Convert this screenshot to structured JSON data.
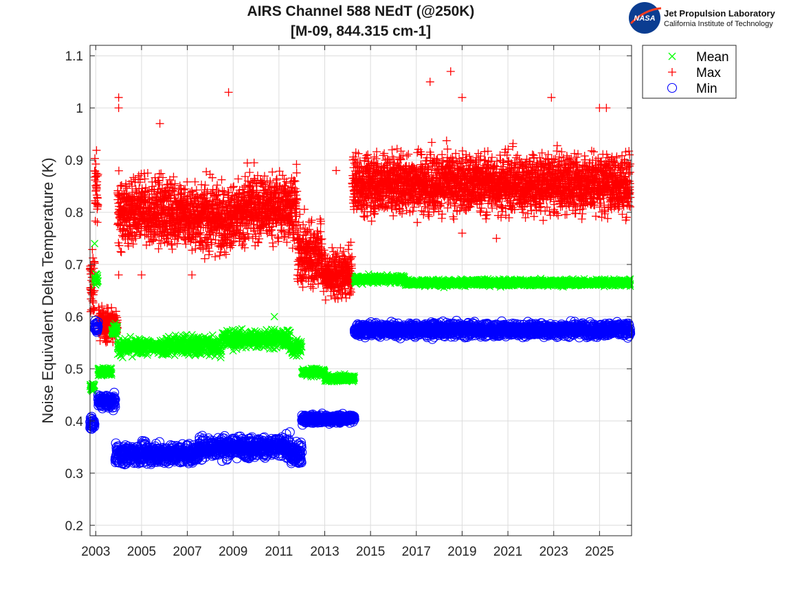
{
  "logo": {
    "agency": "NASA",
    "lab_title": "Jet Propulsion Laboratory",
    "lab_subtitle": "California Institute of Technology"
  },
  "chart_data": {
    "type": "scatter",
    "title": "AIRS Channel 588 NEdT (@250K)",
    "subtitle": "[M-09, 844.315 cm-1]",
    "xlabel": "",
    "ylabel": "Noise Equivalent Delta Temperature (K)",
    "xlim": [
      2002.75,
      2026.4
    ],
    "ylim": [
      0.18,
      1.12
    ],
    "xticks": [
      2003,
      2005,
      2007,
      2009,
      2011,
      2013,
      2015,
      2017,
      2019,
      2021,
      2023,
      2025
    ],
    "yticks": [
      0.2,
      0.3,
      0.4,
      0.5,
      0.6,
      0.7,
      0.8,
      0.9,
      1.0,
      1.1
    ],
    "ytick_labels": [
      "0.2",
      "0.3",
      "0.4",
      "0.5",
      "0.6",
      "0.7",
      "0.8",
      "0.9",
      "1",
      "1.1"
    ],
    "grid": true,
    "legend_position": "outside-top-right",
    "series": [
      {
        "name": "Mean",
        "marker": "x",
        "color": "#00ff00",
        "segments": [
          {
            "x_start": 2002.75,
            "x_end": 2002.95,
            "level": 0.465,
            "spread": 0.006
          },
          {
            "x_start": 2002.95,
            "x_end": 2003.1,
            "level": 0.67,
            "spread": 0.01
          },
          {
            "x_start": 2003.1,
            "x_end": 2003.7,
            "level": 0.495,
            "spread": 0.006
          },
          {
            "x_start": 2003.7,
            "x_end": 2003.95,
            "level": 0.575,
            "spread": 0.01
          },
          {
            "x_start": 2003.95,
            "x_end": 2006.0,
            "level": 0.542,
            "spread": 0.012
          },
          {
            "x_start": 2006.0,
            "x_end": 2008.5,
            "level": 0.545,
            "spread": 0.016
          },
          {
            "x_start": 2008.5,
            "x_end": 2011.5,
            "level": 0.557,
            "spread": 0.014
          },
          {
            "x_start": 2011.5,
            "x_end": 2012.0,
            "level": 0.54,
            "spread": 0.012
          },
          {
            "x_start": 2012.0,
            "x_end": 2013.0,
            "level": 0.493,
            "spread": 0.006
          },
          {
            "x_start": 2013.0,
            "x_end": 2014.3,
            "level": 0.482,
            "spread": 0.005
          },
          {
            "x_start": 2014.3,
            "x_end": 2016.5,
            "level": 0.672,
            "spread": 0.006
          },
          {
            "x_start": 2016.5,
            "x_end": 2026.35,
            "level": 0.665,
            "spread": 0.005
          }
        ]
      },
      {
        "name": "Max",
        "marker": "+",
        "color": "#ff0000",
        "segments": [
          {
            "x_start": 2002.75,
            "x_end": 2002.95,
            "level": 0.66,
            "spread": 0.05
          },
          {
            "x_start": 2002.95,
            "x_end": 2003.1,
            "level": 0.85,
            "spread": 0.05
          },
          {
            "x_start": 2003.1,
            "x_end": 2003.95,
            "level": 0.585,
            "spread": 0.025
          },
          {
            "x_start": 2003.95,
            "x_end": 2007.0,
            "level": 0.8,
            "spread": 0.05
          },
          {
            "x_start": 2007.0,
            "x_end": 2009.5,
            "level": 0.79,
            "spread": 0.05
          },
          {
            "x_start": 2009.5,
            "x_end": 2011.8,
            "level": 0.81,
            "spread": 0.05
          },
          {
            "x_start": 2011.8,
            "x_end": 2012.9,
            "level": 0.72,
            "spread": 0.05
          },
          {
            "x_start": 2012.9,
            "x_end": 2014.2,
            "level": 0.68,
            "spread": 0.035
          },
          {
            "x_start": 2014.2,
            "x_end": 2026.35,
            "level": 0.855,
            "spread": 0.045
          }
        ]
      },
      {
        "name": "Min",
        "marker": "o",
        "color": "#0000ff",
        "segments": [
          {
            "x_start": 2002.75,
            "x_end": 2002.95,
            "level": 0.395,
            "spread": 0.008
          },
          {
            "x_start": 2002.95,
            "x_end": 2003.1,
            "level": 0.58,
            "spread": 0.008
          },
          {
            "x_start": 2003.1,
            "x_end": 2003.85,
            "level": 0.437,
            "spread": 0.01
          },
          {
            "x_start": 2003.85,
            "x_end": 2007.5,
            "level": 0.337,
            "spread": 0.015
          },
          {
            "x_start": 2007.5,
            "x_end": 2011.5,
            "level": 0.35,
            "spread": 0.016
          },
          {
            "x_start": 2011.5,
            "x_end": 2012.0,
            "level": 0.335,
            "spread": 0.018
          },
          {
            "x_start": 2012.0,
            "x_end": 2014.3,
            "level": 0.404,
            "spread": 0.006
          },
          {
            "x_start": 2014.3,
            "x_end": 2026.35,
            "level": 0.575,
            "spread": 0.01
          }
        ]
      }
    ],
    "outliers": {
      "Max": [
        [
          2004.0,
          1.02
        ],
        [
          2004.0,
          1.0
        ],
        [
          2005.8,
          0.97
        ],
        [
          2008.8,
          1.03
        ],
        [
          2017.6,
          1.05
        ],
        [
          2018.5,
          1.07
        ],
        [
          2019.0,
          1.02
        ],
        [
          2022.9,
          1.02
        ],
        [
          2025.0,
          1.0
        ],
        [
          2025.3,
          1.0
        ],
        [
          2004.0,
          0.68
        ],
        [
          2005.0,
          0.68
        ],
        [
          2007.2,
          0.68
        ],
        [
          2019.0,
          0.76
        ],
        [
          2020.5,
          0.75
        ],
        [
          2013.5,
          0.88
        ]
      ],
      "Mean": [
        [
          2002.95,
          0.74
        ],
        [
          2010.8,
          0.6
        ]
      ]
    }
  }
}
